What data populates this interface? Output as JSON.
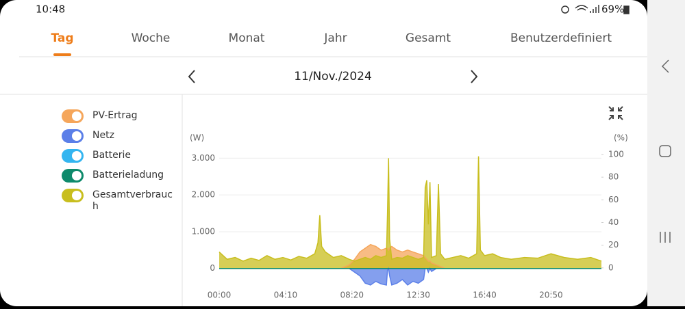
{
  "status_bar": {
    "time": "10:48",
    "battery": "69%"
  },
  "tabs": [
    "Tag",
    "Woche",
    "Monat",
    "Jahr",
    "Gesamt",
    "Benutzerdefiniert"
  ],
  "active_tab": 0,
  "date": "11/Nov./2024",
  "chart_data": {
    "type": "area",
    "y_label": "(W)",
    "y2_label": "(%)",
    "x": [
      0,
      30,
      60,
      90,
      120,
      150,
      180,
      210,
      240,
      270,
      300,
      330,
      360,
      372,
      379,
      386,
      400,
      430,
      460,
      490,
      510,
      530,
      550,
      570,
      590,
      610,
      630,
      634,
      638,
      642,
      650,
      670,
      690,
      710,
      730,
      750,
      770,
      776,
      782,
      788,
      794,
      800,
      818,
      826,
      834,
      850,
      880,
      910,
      940,
      970,
      977,
      984,
      1000,
      1030,
      1060,
      1100,
      1150,
      1200,
      1250,
      1300,
      1350,
      1400,
      1440
    ],
    "series": [
      {
        "name": "PV-Ertrag",
        "color": "#f5a65b",
        "values": [
          0,
          0,
          0,
          0,
          0,
          0,
          0,
          0,
          0,
          0,
          0,
          0,
          0,
          0,
          0,
          0,
          0,
          0,
          0,
          100,
          250,
          450,
          550,
          650,
          600,
          500,
          550,
          550,
          500,
          550,
          600,
          500,
          450,
          500,
          450,
          400,
          350,
          300,
          250,
          200,
          200,
          150,
          100,
          80,
          50,
          0,
          0,
          0,
          0,
          0,
          0,
          0,
          0,
          0,
          0,
          0,
          0,
          0,
          0,
          0,
          0,
          0,
          0
        ]
      },
      {
        "name": "Netz",
        "color": "#5b7fe8",
        "values": [
          0,
          0,
          0,
          0,
          0,
          0,
          0,
          0,
          0,
          0,
          0,
          0,
          0,
          0,
          0,
          0,
          0,
          0,
          0,
          0,
          -100,
          -200,
          -400,
          -450,
          -350,
          -420,
          -450,
          -50,
          0,
          -200,
          -450,
          -400,
          -300,
          -450,
          -350,
          -400,
          -300,
          0,
          0,
          -100,
          0,
          -80,
          0,
          0,
          0,
          0,
          0,
          0,
          0,
          0,
          0,
          0,
          0,
          0,
          0,
          0,
          0,
          0,
          0,
          0,
          0,
          0,
          0
        ]
      },
      {
        "name": "Batterie",
        "color": "#34b5f0",
        "values": [
          0,
          0,
          0,
          0,
          0,
          0,
          0,
          0,
          0,
          0,
          0,
          0,
          0,
          0,
          0,
          0,
          0,
          0,
          0,
          0,
          0,
          0,
          0,
          0,
          0,
          0,
          0,
          0,
          0,
          0,
          0,
          0,
          0,
          0,
          0,
          0,
          0,
          0,
          0,
          0,
          0,
          0,
          0,
          0,
          0,
          0,
          0,
          0,
          0,
          0,
          0,
          0,
          0,
          0,
          0,
          0,
          0,
          0,
          0,
          0,
          0,
          0,
          0
        ]
      },
      {
        "name": "Batterieladung",
        "color": "#0e8a6b",
        "values": [
          0,
          0,
          0,
          0,
          0,
          0,
          0,
          0,
          0,
          0,
          0,
          0,
          0,
          0,
          0,
          0,
          0,
          0,
          0,
          0,
          0,
          0,
          0,
          0,
          0,
          0,
          0,
          0,
          0,
          0,
          0,
          0,
          0,
          0,
          0,
          0,
          0,
          0,
          0,
          0,
          0,
          0,
          0,
          0,
          0,
          0,
          0,
          0,
          0,
          0,
          0,
          0,
          0,
          0,
          0,
          0,
          0,
          0,
          0,
          0,
          0,
          0,
          0
        ]
      },
      {
        "name": "Gesamtverbrauch",
        "color": "#c8be1e",
        "values": [
          450,
          250,
          300,
          200,
          280,
          220,
          350,
          250,
          300,
          230,
          330,
          280,
          400,
          700,
          1450,
          600,
          450,
          300,
          350,
          250,
          200,
          250,
          300,
          250,
          350,
          300,
          350,
          1500,
          3000,
          800,
          250,
          300,
          280,
          350,
          300,
          250,
          300,
          2200,
          2400,
          1200,
          2350,
          300,
          350,
          2300,
          400,
          250,
          300,
          350,
          280,
          400,
          3050,
          500,
          350,
          400,
          300,
          250,
          300,
          280,
          400,
          300,
          250,
          300,
          200
        ]
      }
    ],
    "xlim": [
      0,
      1440
    ],
    "xticks": [
      {
        "value": 0,
        "label": "00:00"
      },
      {
        "value": 250,
        "label": "04:10"
      },
      {
        "value": 500,
        "label": "08:20"
      },
      {
        "value": 750,
        "label": "12:30"
      },
      {
        "value": 1000,
        "label": "16:40"
      },
      {
        "value": 1250,
        "label": "20:50"
      }
    ],
    "ylim": [
      -600,
      3100
    ],
    "yticks": [
      0,
      {
        "value": 1000,
        "label": "1.000"
      },
      {
        "value": 2000,
        "label": "2.000"
      },
      {
        "value": 3000,
        "label": "3.000"
      }
    ],
    "y2lim": [
      -20,
      100
    ],
    "y2ticks": [
      0,
      20,
      40,
      60,
      80,
      100
    ],
    "grid": true
  }
}
